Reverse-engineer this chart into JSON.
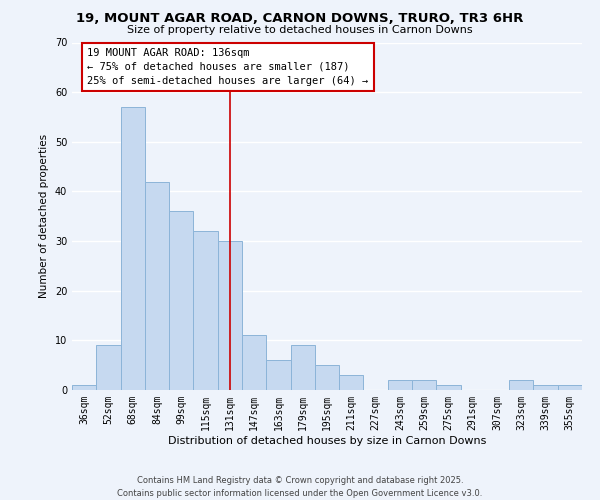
{
  "title": "19, MOUNT AGAR ROAD, CARNON DOWNS, TRURO, TR3 6HR",
  "subtitle": "Size of property relative to detached houses in Carnon Downs",
  "xlabel": "Distribution of detached houses by size in Carnon Downs",
  "ylabel": "Number of detached properties",
  "bar_labels": [
    "36sqm",
    "52sqm",
    "68sqm",
    "84sqm",
    "99sqm",
    "115sqm",
    "131sqm",
    "147sqm",
    "163sqm",
    "179sqm",
    "195sqm",
    "211sqm",
    "227sqm",
    "243sqm",
    "259sqm",
    "275sqm",
    "291sqm",
    "307sqm",
    "323sqm",
    "339sqm",
    "355sqm"
  ],
  "bar_values": [
    1,
    9,
    57,
    42,
    36,
    32,
    30,
    11,
    6,
    9,
    5,
    3,
    0,
    2,
    2,
    1,
    0,
    0,
    2,
    1,
    1
  ],
  "bar_color": "#c6d9f0",
  "bar_edge_color": "#8cb4d8",
  "ylim": [
    0,
    70
  ],
  "yticks": [
    0,
    10,
    20,
    30,
    40,
    50,
    60,
    70
  ],
  "vline_x": 6,
  "vline_color": "#cc0000",
  "annotation_title": "19 MOUNT AGAR ROAD: 136sqm",
  "annotation_line1": "← 75% of detached houses are smaller (187)",
  "annotation_line2": "25% of semi-detached houses are larger (64) →",
  "annotation_box_facecolor": "#ffffff",
  "annotation_box_edgecolor": "#cc0000",
  "footer_line1": "Contains HM Land Registry data © Crown copyright and database right 2025.",
  "footer_line2": "Contains public sector information licensed under the Open Government Licence v3.0.",
  "background_color": "#eef3fb",
  "grid_color": "#ffffff",
  "title_fontsize": 9.5,
  "subtitle_fontsize": 8,
  "ylabel_fontsize": 7.5,
  "xlabel_fontsize": 8,
  "tick_fontsize": 7,
  "annot_fontsize": 7.5,
  "footer_fontsize": 6
}
